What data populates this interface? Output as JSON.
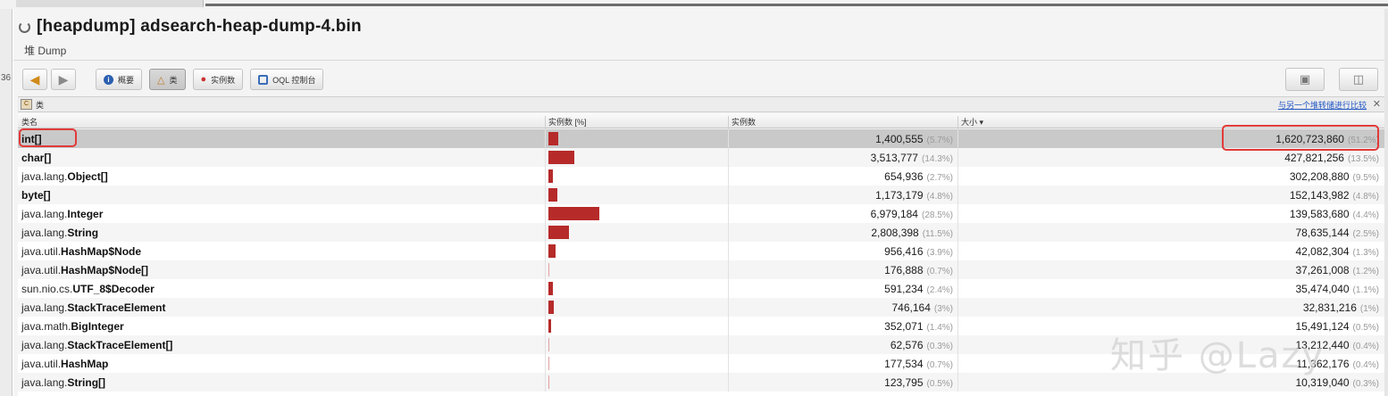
{
  "window": {
    "title": "[heapdump] adsearch-heap-dump-4.bin",
    "subtab": "堆 Dump",
    "left_fragment": "36"
  },
  "toolbar": {
    "back_icon": "arrow-left-icon",
    "forward_icon": "arrow-right-icon",
    "buttons": [
      {
        "label": "概要",
        "icon": "info-icon"
      },
      {
        "label": "类",
        "icon": "class-icon"
      },
      {
        "label": "实例数",
        "icon": "instance-icon"
      },
      {
        "label": "OQL 控制台",
        "icon": "oql-icon"
      }
    ]
  },
  "panel": {
    "title": "类",
    "compare_link": "与另一个堆转储进行比较",
    "close": "✕"
  },
  "table": {
    "columns": [
      "类名",
      "实例数 [%]",
      "实例数",
      "大小 ▾"
    ],
    "rows": [
      {
        "prefix": "",
        "name": "int[]",
        "count": "1,400,555",
        "count_pct": "(5.7%)",
        "bar": 0.057,
        "size": "1,620,723,860",
        "size_pct": "(51.2%)"
      },
      {
        "prefix": "",
        "name": "char[]",
        "count": "3,513,777",
        "count_pct": "(14.3%)",
        "bar": 0.143,
        "size": "427,821,256",
        "size_pct": "(13.5%)"
      },
      {
        "prefix": "java.lang.",
        "name": "Object[]",
        "count": "654,936",
        "count_pct": "(2.7%)",
        "bar": 0.027,
        "size": "302,208,880",
        "size_pct": "(9.5%)"
      },
      {
        "prefix": "",
        "name": "byte[]",
        "count": "1,173,179",
        "count_pct": "(4.8%)",
        "bar": 0.048,
        "size": "152,143,982",
        "size_pct": "(4.8%)"
      },
      {
        "prefix": "java.lang.",
        "name": "Integer",
        "count": "6,979,184",
        "count_pct": "(28.5%)",
        "bar": 0.285,
        "size": "139,583,680",
        "size_pct": "(4.4%)"
      },
      {
        "prefix": "java.lang.",
        "name": "String",
        "count": "2,808,398",
        "count_pct": "(11.5%)",
        "bar": 0.115,
        "size": "78,635,144",
        "size_pct": "(2.5%)"
      },
      {
        "prefix": "java.util.",
        "name": "HashMap$Node",
        "count": "956,416",
        "count_pct": "(3.9%)",
        "bar": 0.039,
        "size": "42,082,304",
        "size_pct": "(1.3%)"
      },
      {
        "prefix": "java.util.",
        "name": "HashMap$Node[]",
        "count": "176,888",
        "count_pct": "(0.7%)",
        "bar": 0.007,
        "size": "37,261,008",
        "size_pct": "(1.2%)"
      },
      {
        "prefix": "sun.nio.cs.",
        "name": "UTF_8$Decoder",
        "count": "591,234",
        "count_pct": "(2.4%)",
        "bar": 0.024,
        "size": "35,474,040",
        "size_pct": "(1.1%)"
      },
      {
        "prefix": "java.lang.",
        "name": "StackTraceElement",
        "count": "746,164",
        "count_pct": "(3%)",
        "bar": 0.03,
        "size": "32,831,216",
        "size_pct": "(1%)"
      },
      {
        "prefix": "java.math.",
        "name": "BigInteger",
        "count": "352,071",
        "count_pct": "(1.4%)",
        "bar": 0.014,
        "size": "15,491,124",
        "size_pct": "(0.5%)"
      },
      {
        "prefix": "java.lang.",
        "name": "StackTraceElement[]",
        "count": "62,576",
        "count_pct": "(0.3%)",
        "bar": 0.003,
        "size": "13,212,440",
        "size_pct": "(0.4%)"
      },
      {
        "prefix": "java.util.",
        "name": "HashMap",
        "count": "177,534",
        "count_pct": "(0.7%)",
        "bar": 0.007,
        "size": "11,362,176",
        "size_pct": "(0.4%)"
      },
      {
        "prefix": "java.lang.",
        "name": "String[]",
        "count": "123,795",
        "count_pct": "(0.5%)",
        "bar": 0.005,
        "size": "10,319,040",
        "size_pct": "(0.3%)"
      }
    ]
  },
  "watermark": "知乎 @Lazy"
}
